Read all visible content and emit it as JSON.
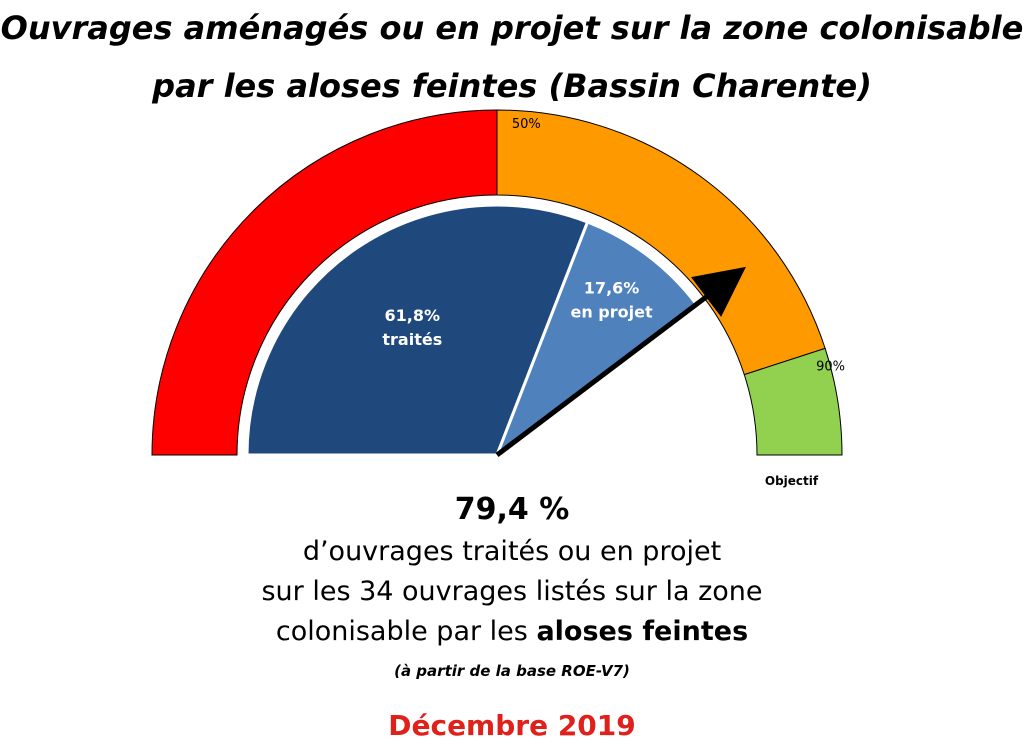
{
  "title": {
    "line1": "Ouvrages aménagés ou en projet sur la zone colonisable",
    "line2": "par les aloses feintes (Bassin Charente)"
  },
  "chart_data": {
    "type": "gauge",
    "range": [
      0,
      100
    ],
    "bands": [
      {
        "from": 0,
        "to": 50,
        "color": "#ff0000"
      },
      {
        "from": 50,
        "to": 90,
        "color": "#ff9900",
        "label": "50%"
      },
      {
        "from": 90,
        "to": 100,
        "color": "#92d050",
        "label": "90%"
      }
    ],
    "objective_label": "Objectif",
    "segments": [
      {
        "value": 61.8,
        "color": "#1f497d",
        "label_value": "61,8%",
        "label_text": "traités"
      },
      {
        "value": 17.6,
        "color": "#4f81bd",
        "label_value": "17,6%",
        "label_text": "en projet"
      }
    ],
    "needle_value": 79.4
  },
  "summary": {
    "value": "79,4 %",
    "line1": "d’ouvrages traités ou en projet",
    "line2": "sur les 34 ouvrages listés sur la zone",
    "line3_prefix": "colonisable par les ",
    "line3_bold": "aloses feintes",
    "note": "(à partir de la base ROE-V7)"
  },
  "date": "Décembre 2019",
  "colors": {
    "date": "#e0201b",
    "needle": "#000000"
  }
}
